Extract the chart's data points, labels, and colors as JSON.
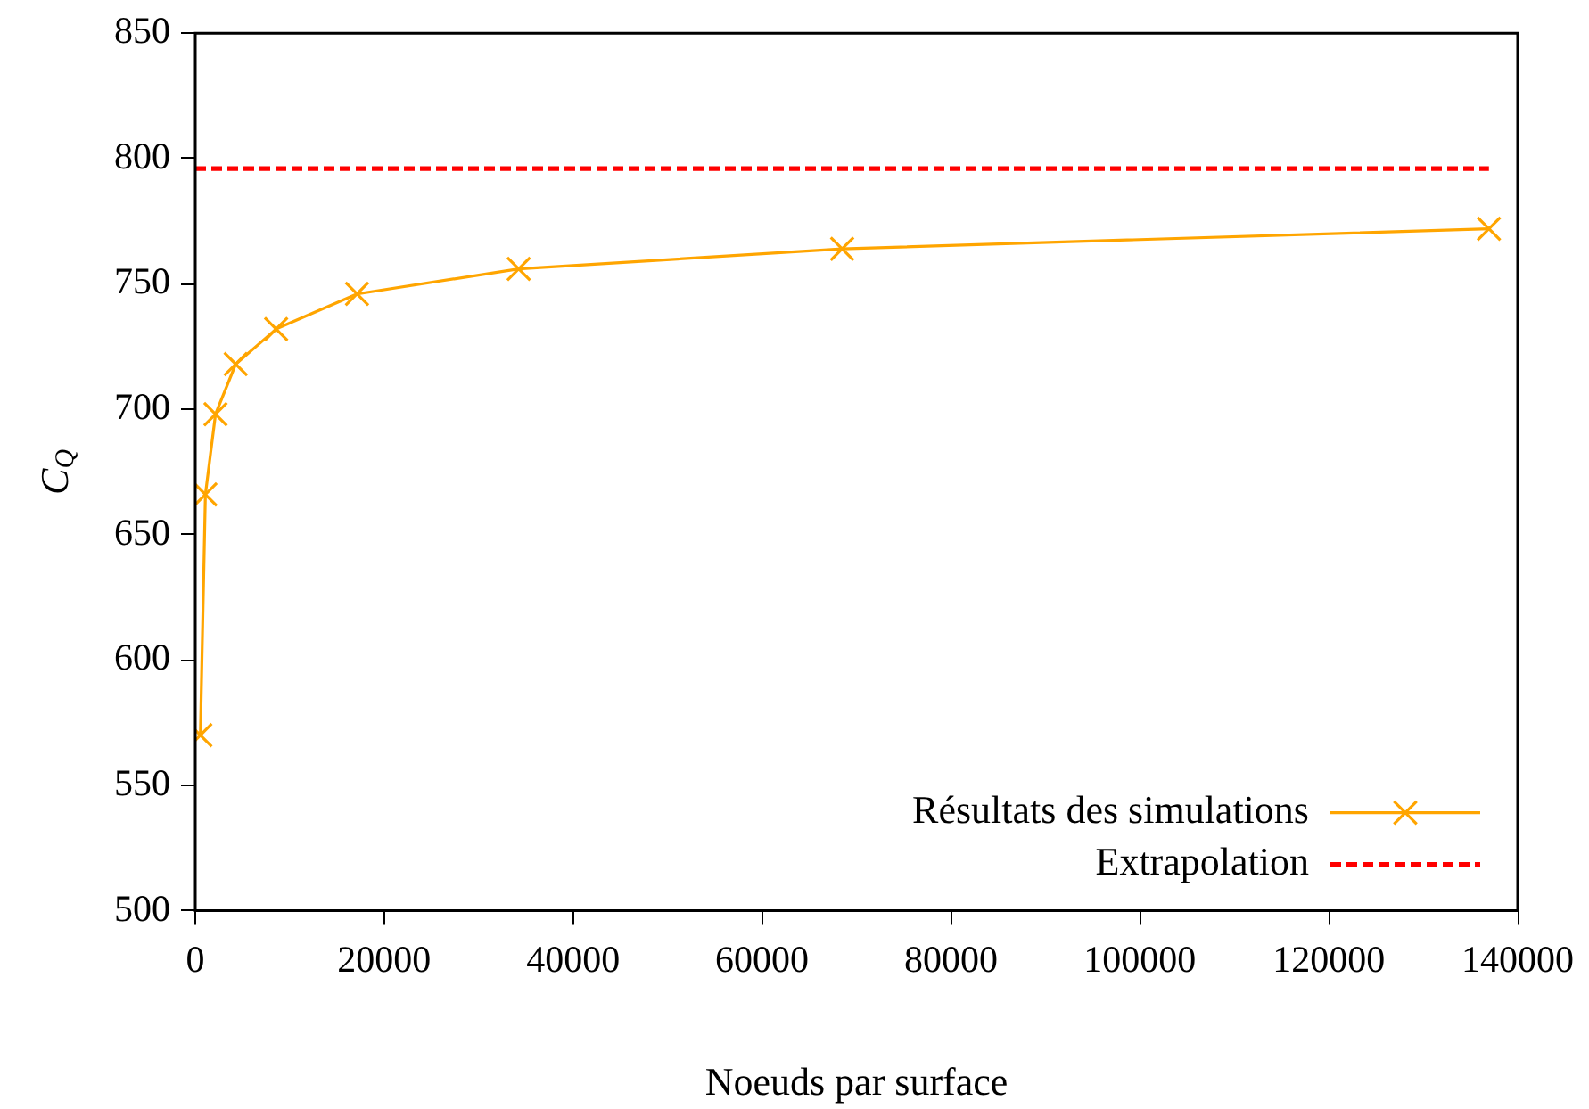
{
  "chart_data": {
    "type": "line",
    "xlabel": "Noeuds par surface",
    "ylabel": "C$_{Q}$",
    "xlim": [
      0,
      140000
    ],
    "xticks": [
      0,
      20000,
      40000,
      60000,
      80000,
      100000,
      120000,
      140000
    ],
    "ylim": [
      500,
      850
    ],
    "yticks": [
      500,
      550,
      600,
      650,
      700,
      750,
      800,
      850
    ],
    "grid": false,
    "legend": "bottom right",
    "series": [
      {
        "name": "Résultats des simulations",
        "color": "#ffa500",
        "marker": "cross",
        "line_style": "solid",
        "x": [
          536,
          1070,
          2140,
          4280,
          8560,
          17120,
          34240,
          68480,
          136960
        ],
        "values": [
          570,
          666,
          698,
          718,
          732,
          746,
          756,
          764,
          772
        ]
      },
      {
        "name": "Extrapolation",
        "color": "#ff0000",
        "marker": "none",
        "line_style": "dashed",
        "x": [
          0,
          136960
        ],
        "values": [
          796,
          796
        ]
      }
    ]
  }
}
